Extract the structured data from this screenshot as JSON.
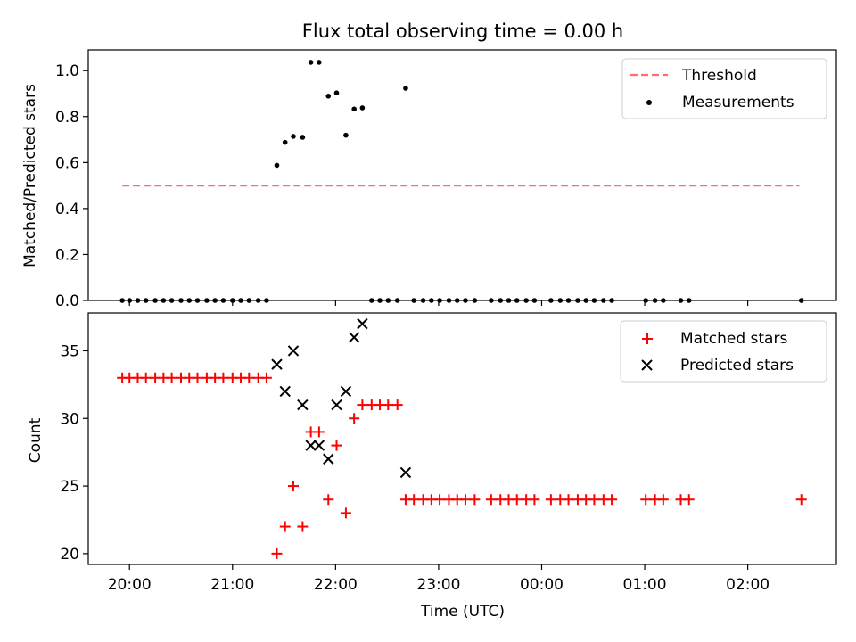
{
  "figure_title": "Flux total observing time = 0.00 h",
  "colors": {
    "threshold": "#ff6e6e",
    "measurement": "#000000",
    "matched": "#ff0000",
    "predicted": "#000000",
    "axes": "#000000"
  },
  "chart_data": [
    {
      "type": "scatter",
      "panel": "top",
      "title": "Flux total observing time = 0.00 h",
      "xlabel": "",
      "ylabel": "Matched/Predicted stars",
      "x_unit": "hours after 20:00 UTC",
      "xlim": [
        -0.4,
        6.86
      ],
      "ylim": [
        0.0,
        1.09
      ],
      "y_ticks": [
        0.0,
        0.2,
        0.4,
        0.6,
        0.8,
        1.0
      ],
      "y_tick_labels": [
        "0.0",
        "0.2",
        "0.4",
        "0.6",
        "0.8",
        "1.0"
      ],
      "legend_position": "top-right",
      "series": [
        {
          "name": "Threshold",
          "kind": "dashed-line",
          "points": [
            [
              -0.07,
              0.5
            ],
            [
              6.5,
              0.5
            ]
          ]
        },
        {
          "name": "Measurements",
          "kind": "points",
          "points": [
            [
              -0.07,
              0.0
            ],
            [
              0.0,
              0.0
            ],
            [
              0.08,
              0.0
            ],
            [
              0.16,
              0.0
            ],
            [
              0.25,
              0.0
            ],
            [
              0.33,
              0.0
            ],
            [
              0.41,
              0.0
            ],
            [
              0.5,
              0.0
            ],
            [
              0.58,
              0.0
            ],
            [
              0.66,
              0.0
            ],
            [
              0.75,
              0.0
            ],
            [
              0.83,
              0.0
            ],
            [
              0.91,
              0.0
            ],
            [
              1.0,
              0.0
            ],
            [
              1.08,
              0.0
            ],
            [
              1.16,
              0.0
            ],
            [
              1.25,
              0.0
            ],
            [
              1.33,
              0.0
            ],
            [
              1.43,
              0.588
            ],
            [
              1.51,
              0.688
            ],
            [
              1.59,
              0.714
            ],
            [
              1.68,
              0.71
            ],
            [
              1.76,
              1.036
            ],
            [
              1.84,
              1.036
            ],
            [
              1.93,
              0.889
            ],
            [
              2.01,
              0.903
            ],
            [
              2.1,
              0.719
            ],
            [
              2.18,
              0.833
            ],
            [
              2.26,
              0.838
            ],
            [
              2.68,
              0.923
            ],
            [
              2.35,
              0.0
            ],
            [
              2.43,
              0.0
            ],
            [
              2.51,
              0.0
            ],
            [
              2.6,
              0.0
            ],
            [
              2.76,
              0.0
            ],
            [
              2.85,
              0.0
            ],
            [
              2.93,
              0.0
            ],
            [
              3.01,
              0.0
            ],
            [
              3.1,
              0.0
            ],
            [
              3.18,
              0.0
            ],
            [
              3.26,
              0.0
            ],
            [
              3.35,
              0.0
            ],
            [
              3.51,
              0.0
            ],
            [
              3.6,
              0.0
            ],
            [
              3.68,
              0.0
            ],
            [
              3.76,
              0.0
            ],
            [
              3.85,
              0.0
            ],
            [
              3.93,
              0.0
            ],
            [
              4.09,
              0.0
            ],
            [
              4.18,
              0.0
            ],
            [
              4.26,
              0.0
            ],
            [
              4.35,
              0.0
            ],
            [
              4.43,
              0.0
            ],
            [
              4.51,
              0.0
            ],
            [
              4.6,
              0.0
            ],
            [
              4.68,
              0.0
            ],
            [
              5.01,
              0.0
            ],
            [
              5.1,
              0.0
            ],
            [
              5.18,
              0.0
            ],
            [
              5.35,
              0.0
            ],
            [
              5.43,
              0.0
            ],
            [
              6.52,
              0.0
            ]
          ]
        }
      ]
    },
    {
      "type": "scatter",
      "panel": "bottom",
      "xlabel": "Time (UTC)",
      "ylabel": "Count",
      "x_unit": "hours after 20:00 UTC",
      "xlim": [
        -0.4,
        6.86
      ],
      "ylim": [
        19.2,
        37.8
      ],
      "x_ticks": [
        0,
        1,
        2,
        3,
        4,
        5,
        6
      ],
      "x_tick_labels": [
        "20:00",
        "21:00",
        "22:00",
        "23:00",
        "00:00",
        "01:00",
        "02:00"
      ],
      "y_ticks": [
        20,
        25,
        30,
        35
      ],
      "y_tick_labels": [
        "20",
        "25",
        "30",
        "35"
      ],
      "legend_position": "top-right",
      "series": [
        {
          "name": "Matched stars",
          "kind": "plus",
          "points": [
            [
              -0.07,
              33
            ],
            [
              0.0,
              33
            ],
            [
              0.08,
              33
            ],
            [
              0.16,
              33
            ],
            [
              0.25,
              33
            ],
            [
              0.33,
              33
            ],
            [
              0.41,
              33
            ],
            [
              0.5,
              33
            ],
            [
              0.58,
              33
            ],
            [
              0.66,
              33
            ],
            [
              0.75,
              33
            ],
            [
              0.83,
              33
            ],
            [
              0.91,
              33
            ],
            [
              1.0,
              33
            ],
            [
              1.08,
              33
            ],
            [
              1.16,
              33
            ],
            [
              1.25,
              33
            ],
            [
              1.33,
              33
            ],
            [
              1.43,
              20
            ],
            [
              1.51,
              22
            ],
            [
              1.59,
              25
            ],
            [
              1.68,
              22
            ],
            [
              1.76,
              29
            ],
            [
              1.84,
              29
            ],
            [
              1.93,
              24
            ],
            [
              2.01,
              28
            ],
            [
              2.1,
              23
            ],
            [
              2.18,
              30
            ],
            [
              2.26,
              31
            ],
            [
              2.35,
              31
            ],
            [
              2.43,
              31
            ],
            [
              2.51,
              31
            ],
            [
              2.6,
              31
            ],
            [
              2.68,
              24
            ],
            [
              2.76,
              24
            ],
            [
              2.85,
              24
            ],
            [
              2.93,
              24
            ],
            [
              3.01,
              24
            ],
            [
              3.1,
              24
            ],
            [
              3.18,
              24
            ],
            [
              3.26,
              24
            ],
            [
              3.35,
              24
            ],
            [
              3.51,
              24
            ],
            [
              3.6,
              24
            ],
            [
              3.68,
              24
            ],
            [
              3.76,
              24
            ],
            [
              3.85,
              24
            ],
            [
              3.93,
              24
            ],
            [
              4.09,
              24
            ],
            [
              4.18,
              24
            ],
            [
              4.26,
              24
            ],
            [
              4.35,
              24
            ],
            [
              4.43,
              24
            ],
            [
              4.51,
              24
            ],
            [
              4.6,
              24
            ],
            [
              4.68,
              24
            ],
            [
              5.01,
              24
            ],
            [
              5.1,
              24
            ],
            [
              5.18,
              24
            ],
            [
              5.35,
              24
            ],
            [
              5.43,
              24
            ],
            [
              6.52,
              24
            ]
          ]
        },
        {
          "name": "Predicted stars",
          "kind": "x",
          "points": [
            [
              1.43,
              34
            ],
            [
              1.51,
              32
            ],
            [
              1.59,
              35
            ],
            [
              1.68,
              31
            ],
            [
              1.76,
              28
            ],
            [
              1.84,
              28
            ],
            [
              1.93,
              27
            ],
            [
              2.01,
              31
            ],
            [
              2.1,
              32
            ],
            [
              2.18,
              36
            ],
            [
              2.26,
              37
            ],
            [
              2.68,
              26
            ]
          ]
        }
      ]
    }
  ]
}
